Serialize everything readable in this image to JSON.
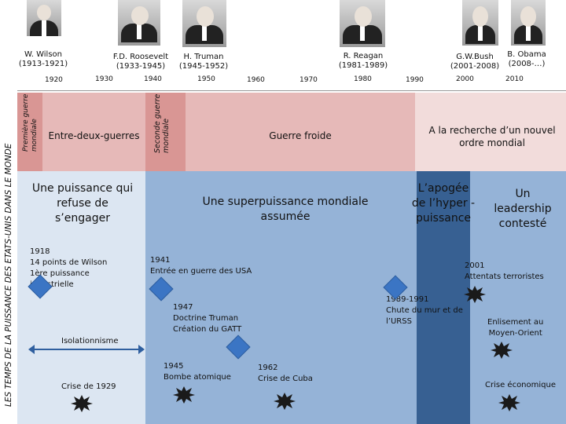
{
  "presidents": [
    {
      "name": "W. Wilson",
      "term": "(1913-1921)"
    },
    {
      "name": "F.D. Roosevelt",
      "term": "(1933-1945)"
    },
    {
      "name": "H. Truman",
      "term": "(1945-1952)"
    },
    {
      "name": "R. Reagan",
      "term": "(1981-1989)"
    },
    {
      "name": "G.W.Bush",
      "term": "(2001-2008)"
    },
    {
      "name": "B. Obama",
      "term": "(2008-…)"
    }
  ],
  "timeline_years": [
    "1920",
    "1930",
    "1940",
    "1950",
    "1960",
    "1970",
    "1980",
    "1990",
    "2000",
    "2010"
  ],
  "side_title": "LES TEMPS DE LA PUISSANCE DES ETATS-UNIS DANS LE MONDE",
  "periods": {
    "ww1": "Première guerre mondiale",
    "interwar": "Entre-deux-guerres",
    "ww2": "Seconde guerre mondiale",
    "cold_war": "Guerre froide",
    "new_order": "A la recherche d’un nouvel ordre mondial"
  },
  "powers": {
    "p1": "Une puissance qui refuse de s’engager",
    "p2": "Une superpuissance mondiale assumée",
    "p3": "L’apogée de l’hyper - puissance",
    "p4": "Un leadership contesté"
  },
  "events": {
    "e1918": [
      "1918",
      "14 points de Wilson",
      "1ère puissance",
      "industrielle"
    ],
    "isolationnisme": "Isolationnisme",
    "crise1929": "Crise de 1929",
    "e1941": [
      "1941",
      "Entrée en guerre des USA"
    ],
    "e1947": [
      "1947",
      "Doctrine Truman",
      "Création du GATT"
    ],
    "e1945": [
      "1945",
      "Bombe atomique"
    ],
    "e1962": [
      "1962",
      "Crise de Cuba"
    ],
    "e1989": [
      "1989-1991",
      "Chute du mur et de",
      "l’URSS"
    ],
    "e2001": [
      "2001",
      "Attentats terroristes"
    ],
    "enlisement": [
      "Enlisement au",
      "Moyen-Orient"
    ],
    "crise_eco": "Crise économique"
  },
  "colors": {
    "salmon_light": "#e6b9b8",
    "salmon_dark": "#d99694",
    "blue_pale": "#dce6f2",
    "blue_mid": "#95b3d7",
    "blue_dark": "#376092",
    "blue_diamond": "#3b75c4"
  }
}
